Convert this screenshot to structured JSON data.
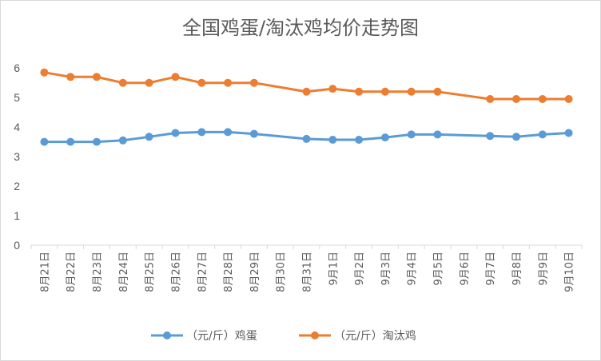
{
  "chart_data": {
    "type": "line",
    "title": "全国鸡蛋/淘汰鸡均价走势图",
    "xlabel": "",
    "ylabel": "",
    "categories": [
      "8月21日",
      "8月22日",
      "8月23日",
      "8月24日",
      "8月25日",
      "8月26日",
      "8月27日",
      "8月28日",
      "8月29日",
      "8月30日",
      "8月31日",
      "9月1日",
      "9月2日",
      "9月3日",
      "9月4日",
      "9月5日",
      "9月6日",
      "9月7日",
      "9月8日",
      "9月9日",
      "9月10日"
    ],
    "yticks": [
      0,
      1,
      2,
      3,
      4,
      5,
      6
    ],
    "ylim": [
      0,
      6.6
    ],
    "grid": false,
    "legend_position": "bottom",
    "series": [
      {
        "name": "（元/斤）鸡蛋",
        "color": "#5b9bd5",
        "values": [
          3.5,
          3.5,
          3.5,
          3.55,
          3.67,
          3.8,
          3.83,
          3.83,
          3.77,
          null,
          3.6,
          3.57,
          3.57,
          3.65,
          3.75,
          3.75,
          null,
          3.7,
          3.67,
          3.75,
          3.8
        ]
      },
      {
        "name": "（元/斤）淘汰鸡",
        "color": "#ed7d31",
        "values": [
          5.85,
          5.7,
          5.7,
          5.5,
          5.5,
          5.7,
          5.5,
          5.5,
          5.5,
          null,
          5.2,
          5.3,
          5.2,
          5.2,
          5.2,
          5.2,
          null,
          4.95,
          4.95,
          4.95,
          4.95
        ]
      }
    ]
  }
}
